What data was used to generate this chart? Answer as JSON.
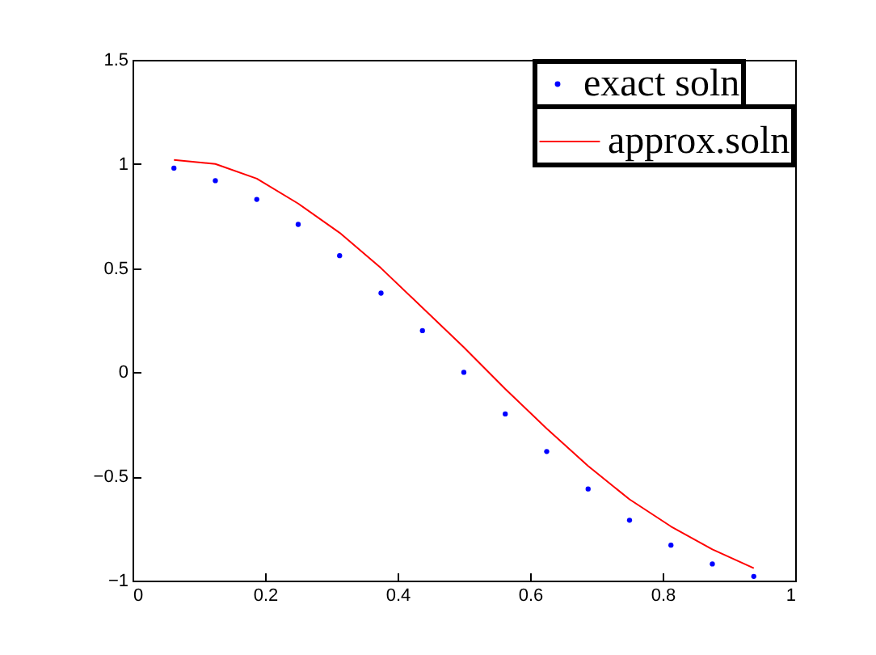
{
  "chart_data": {
    "type": "line",
    "x": [
      0.0625,
      0.125,
      0.1875,
      0.25,
      0.3125,
      0.375,
      0.4375,
      0.5,
      0.5625,
      0.625,
      0.6875,
      0.75,
      0.8125,
      0.875,
      0.9375
    ],
    "series": [
      {
        "name": "exact soln",
        "type": "scatter",
        "marker": "circle",
        "color": "#0000ff",
        "values": [
          0.98,
          0.92,
          0.83,
          0.71,
          0.56,
          0.38,
          0.2,
          0.0,
          -0.2,
          -0.38,
          -0.56,
          -0.71,
          -0.83,
          -0.92,
          -0.98
        ]
      },
      {
        "name": "approx.soln",
        "type": "line",
        "color": "#ff0000",
        "values": [
          1.02,
          1.0,
          0.93,
          0.81,
          0.67,
          0.5,
          0.31,
          0.12,
          -0.08,
          -0.27,
          -0.45,
          -0.61,
          -0.74,
          -0.85,
          -0.94
        ]
      }
    ],
    "xlim": [
      0,
      1
    ],
    "xticks": [
      0,
      0.2,
      0.4,
      0.6,
      0.8,
      1
    ],
    "ylim": [
      -1,
      1.5
    ],
    "yticks": [
      -1,
      -0.5,
      0,
      0.5,
      1,
      1.5
    ],
    "legend": "top right",
    "grid": false
  }
}
